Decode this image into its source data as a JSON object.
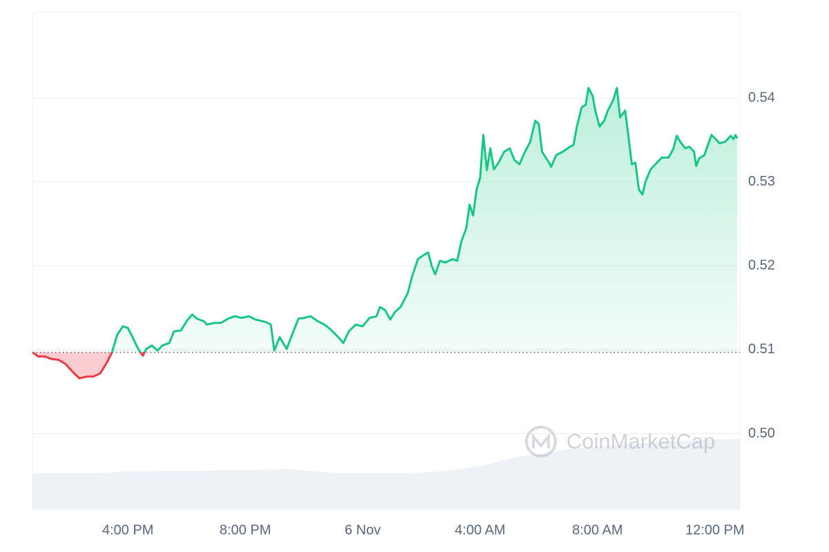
{
  "chart_data": {
    "type": "line",
    "x": [
      12.75,
      12.94,
      13.17,
      13.41,
      13.64,
      13.88,
      14.11,
      14.35,
      14.59,
      14.82,
      15.06,
      15.29,
      15.46,
      15.64,
      15.83,
      16.0,
      16.16,
      16.35,
      16.51,
      16.63,
      16.82,
      17.01,
      17.17,
      17.41,
      17.57,
      17.81,
      18.0,
      18.19,
      18.35,
      18.59,
      18.7,
      18.94,
      19.17,
      19.41,
      19.64,
      19.88,
      20.12,
      20.35,
      20.7,
      20.87,
      20.99,
      21.17,
      21.41,
      21.64,
      21.81,
      22.0,
      22.23,
      22.47,
      22.7,
      22.94,
      23.17,
      23.34,
      23.53,
      23.76,
      24.0,
      24.23,
      24.47,
      24.59,
      24.77,
      24.94,
      25.1,
      25.29,
      25.53,
      25.69,
      25.88,
      26.04,
      26.23,
      26.35,
      26.47,
      26.63,
      26.82,
      27.06,
      27.22,
      27.36,
      27.53,
      27.64,
      27.76,
      27.88,
      28.0,
      28.11,
      28.23,
      28.35,
      28.47,
      28.63,
      28.82,
      29.01,
      29.17,
      29.34,
      29.53,
      29.71,
      29.88,
      30.0,
      30.11,
      30.35,
      30.42,
      30.59,
      30.82,
      31.06,
      31.18,
      31.29,
      31.46,
      31.6,
      31.69,
      31.83,
      31.93,
      32.07,
      32.23,
      32.35,
      32.54,
      32.66,
      32.77,
      32.94,
      33.06,
      33.17,
      33.29,
      33.41,
      33.53,
      33.64,
      33.81,
      34.0,
      34.19,
      34.42,
      34.59,
      34.7,
      34.82,
      34.99,
      35.13,
      35.29,
      35.36,
      35.46,
      35.64,
      35.76,
      35.88,
      36.0,
      36.16,
      36.35,
      36.54,
      36.63,
      36.7,
      36.76
    ],
    "values": [
      0.5097,
      0.5092,
      0.5092,
      0.5089,
      0.5088,
      0.5083,
      0.5074,
      0.5066,
      0.5068,
      0.5068,
      0.5072,
      0.5085,
      0.5097,
      0.5118,
      0.5128,
      0.5126,
      0.5115,
      0.5101,
      0.5093,
      0.5101,
      0.5105,
      0.5099,
      0.5105,
      0.5108,
      0.5122,
      0.5123,
      0.5134,
      0.5142,
      0.5137,
      0.5134,
      0.513,
      0.5132,
      0.5132,
      0.5137,
      0.514,
      0.5138,
      0.514,
      0.5136,
      0.5133,
      0.513,
      0.5099,
      0.5115,
      0.5101,
      0.5122,
      0.5137,
      0.5138,
      0.514,
      0.5134,
      0.513,
      0.5123,
      0.5115,
      0.5108,
      0.5122,
      0.513,
      0.5128,
      0.5138,
      0.514,
      0.5151,
      0.5147,
      0.5136,
      0.5145,
      0.5151,
      0.5167,
      0.5188,
      0.5208,
      0.5212,
      0.5216,
      0.52,
      0.519,
      0.5206,
      0.5204,
      0.5208,
      0.5206,
      0.5229,
      0.5245,
      0.5273,
      0.526,
      0.5291,
      0.5305,
      0.5356,
      0.5314,
      0.534,
      0.5315,
      0.5323,
      0.5336,
      0.534,
      0.5326,
      0.5321,
      0.5336,
      0.5348,
      0.5373,
      0.5369,
      0.5336,
      0.5323,
      0.5318,
      0.5332,
      0.5336,
      0.5342,
      0.5344,
      0.5365,
      0.5389,
      0.5392,
      0.5412,
      0.5403,
      0.5384,
      0.5366,
      0.5373,
      0.5385,
      0.5398,
      0.5412,
      0.5377,
      0.5385,
      0.5352,
      0.5321,
      0.5323,
      0.5291,
      0.5285,
      0.5301,
      0.5315,
      0.5322,
      0.5329,
      0.5329,
      0.534,
      0.5355,
      0.5348,
      0.534,
      0.5342,
      0.5336,
      0.5319,
      0.5328,
      0.5332,
      0.5344,
      0.5356,
      0.5352,
      0.5346,
      0.5348,
      0.5355,
      0.5351,
      0.5356,
      0.5352
    ],
    "baseline": 0.5097,
    "color_up": "#16c784",
    "color_down": "#ea3943",
    "xlim": [
      12.75,
      36.85
    ],
    "xticks": [
      {
        "value": 16,
        "label": "4:00 PM"
      },
      {
        "value": 20,
        "label": "8:00 PM"
      },
      {
        "value": 24,
        "label": "6 Nov"
      },
      {
        "value": 28,
        "label": "4:00 AM"
      },
      {
        "value": 32,
        "label": "8:00 AM"
      },
      {
        "value": 36,
        "label": "12:00 PM"
      }
    ],
    "ylim": [
      0.491,
      0.5502
    ],
    "yticks": [
      {
        "value": 0.5,
        "label": "0.50"
      },
      0.51,
      0.52,
      0.53,
      0.54
    ],
    "grid": true,
    "watermark": "CoinMarketCap"
  }
}
